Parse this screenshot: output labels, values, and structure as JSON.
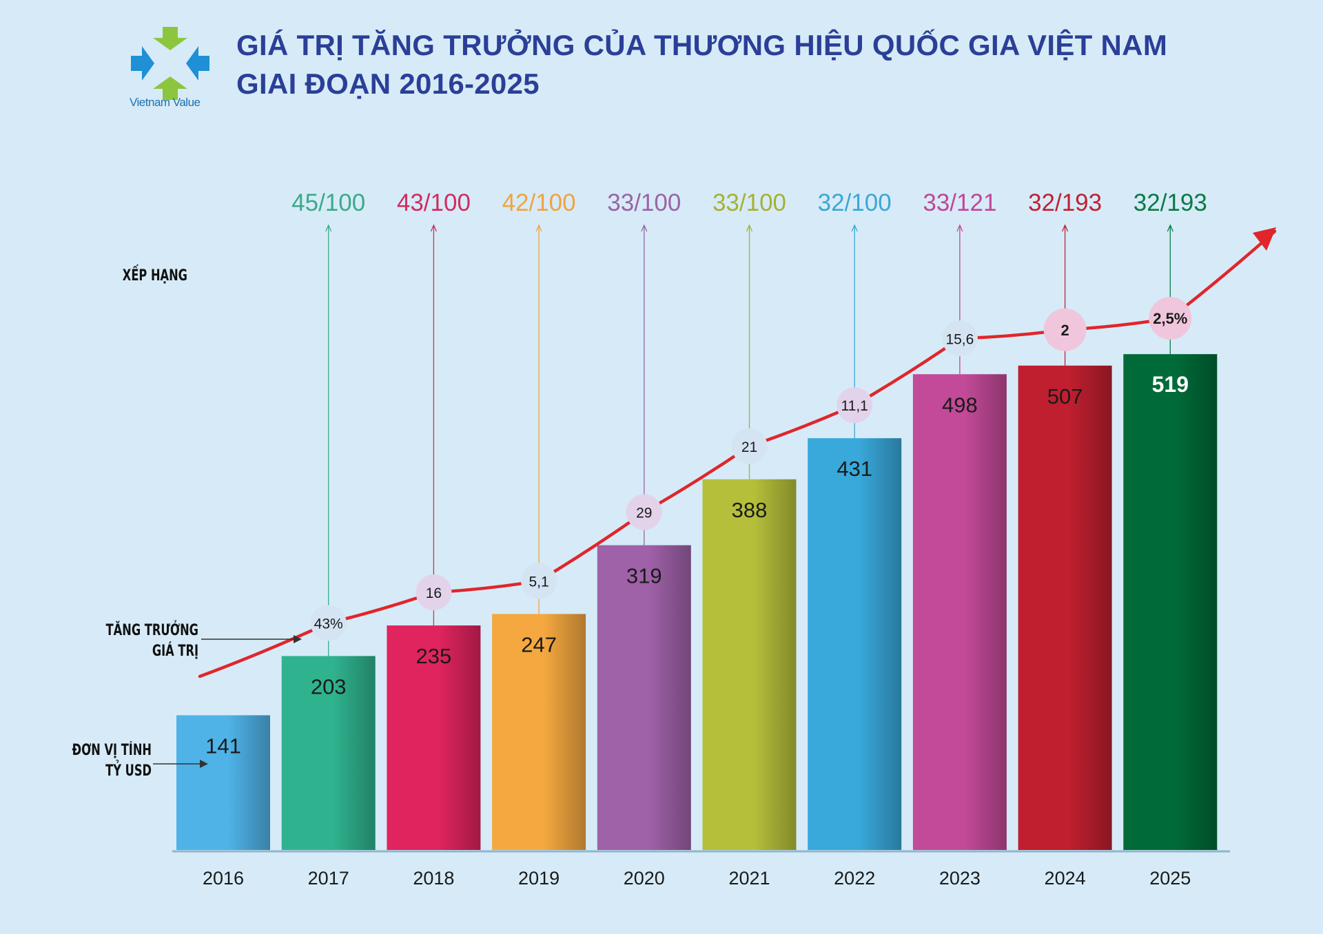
{
  "logo": {
    "text": "Vietnam Value",
    "colors": {
      "green": "#8cc63f",
      "blue": "#1f8fd6"
    }
  },
  "title_line1": "GIÁ TRỊ TĂNG TRƯỞNG CỦA THƯƠNG HIỆU QUỐC GIA VIỆT NAM",
  "title_line2": "GIAI ĐOẠN 2016-2025",
  "labels": {
    "ranking": "XẾP HẠNG",
    "growth_line1": "TĂNG TRƯỞNG",
    "growth_line2": "GIÁ TRỊ",
    "unit_line1": "ĐƠN VỊ TÍNH",
    "unit_line2": "TỶ USD"
  },
  "chart_data": {
    "type": "bar",
    "categories": [
      "2016",
      "2017",
      "2018",
      "2019",
      "2020",
      "2021",
      "2022",
      "2023",
      "2024",
      "2025"
    ],
    "values": [
      141,
      203,
      235,
      247,
      319,
      388,
      431,
      498,
      507,
      519
    ],
    "rankings": [
      null,
      "45/100",
      "43/100",
      "42/100",
      "33/100",
      "33/100",
      "32/100",
      "33/121",
      "32/193",
      "32/193"
    ],
    "growth": [
      null,
      "43%",
      "16",
      "5,1",
      "29",
      "21",
      "11,1",
      "15,6",
      "2",
      "2,5%"
    ],
    "bar_colors": [
      "#4fb3e8",
      "#2fb38f",
      "#e0245e",
      "#f5a840",
      "#9f61a8",
      "#b5bf3a",
      "#39a8da",
      "#c24a98",
      "#bf1f2f",
      "#006b38"
    ],
    "ranking_colors": [
      null,
      "#3aaa8a",
      "#d42a60",
      "#f0a340",
      "#9b63a6",
      "#a8b033",
      "#3aa7d6",
      "#c2459a",
      "#c21f33",
      "#0a7a44"
    ],
    "trend_color": "#e0262b",
    "unit": "TỶ USD"
  }
}
